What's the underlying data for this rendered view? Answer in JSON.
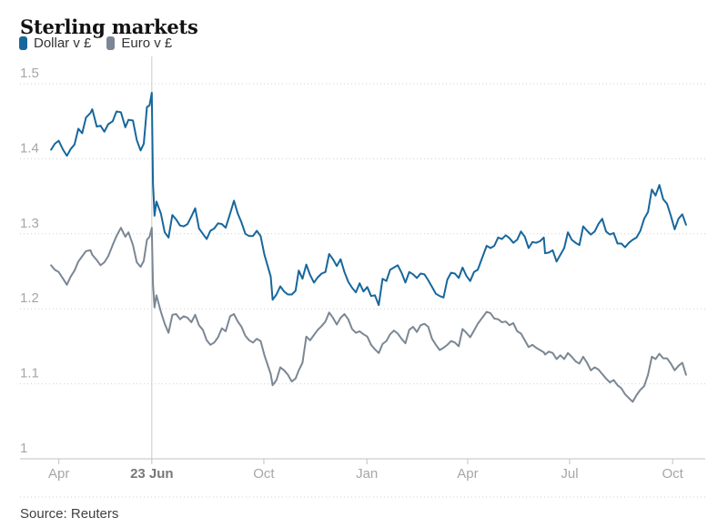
{
  "chart_data": {
    "type": "line",
    "title": "Sterling markets",
    "source": "Source: Reuters",
    "xlabel": "",
    "ylabel": "",
    "ylim": [
      1.0,
      1.5
    ],
    "grid": "dotted-horizontal",
    "legend_position": "top-left",
    "y_ticks": [
      {
        "v": 1.5,
        "label": "1.5"
      },
      {
        "v": 1.4,
        "label": "1.4"
      },
      {
        "v": 1.3,
        "label": "1.3"
      },
      {
        "v": 1.2,
        "label": "1.2"
      },
      {
        "v": 1.1,
        "label": "1.1"
      },
      {
        "v": 1.0,
        "label": "1"
      }
    ],
    "x_ticks": [
      {
        "t": 0.0123,
        "label": "Apr",
        "emphasis": false
      },
      {
        "t": 0.1587,
        "label": "23 Jun",
        "emphasis": true
      },
      {
        "t": 0.3351,
        "label": "Oct",
        "emphasis": false
      },
      {
        "t": 0.4974,
        "label": "Jan",
        "emphasis": false
      },
      {
        "t": 0.6561,
        "label": "Apr",
        "emphasis": false
      },
      {
        "t": 0.8166,
        "label": "Jul",
        "emphasis": false
      },
      {
        "t": 0.9788,
        "label": "Oct",
        "emphasis": false
      }
    ],
    "marker_line": {
      "t": 0.1587
    },
    "t": [
      0,
      0.006,
      0.012,
      0.019,
      0.025,
      0.031,
      0.037,
      0.043,
      0.049,
      0.055,
      0.062,
      0.065,
      0.072,
      0.078,
      0.084,
      0.09,
      0.097,
      0.103,
      0.11,
      0.117,
      0.122,
      0.129,
      0.135,
      0.141,
      0.146,
      0.151,
      0.155,
      0.1587,
      0.1605,
      0.163,
      0.166,
      0.173,
      0.179,
      0.185,
      0.191,
      0.197,
      0.203,
      0.209,
      0.215,
      0.221,
      0.227,
      0.233,
      0.239,
      0.245,
      0.251,
      0.257,
      0.263,
      0.269,
      0.275,
      0.282,
      0.288,
      0.294,
      0.3,
      0.306,
      0.312,
      0.318,
      0.324,
      0.33,
      0.336,
      0.346,
      0.349,
      0.355,
      0.361,
      0.367,
      0.373,
      0.379,
      0.385,
      0.39,
      0.396,
      0.402,
      0.408,
      0.414,
      0.42,
      0.426,
      0.432,
      0.438,
      0.444,
      0.45,
      0.456,
      0.462,
      0.468,
      0.474,
      0.48,
      0.486,
      0.492,
      0.498,
      0.504,
      0.51,
      0.516,
      0.522,
      0.528,
      0.534,
      0.54,
      0.546,
      0.552,
      0.558,
      0.564,
      0.57,
      0.576,
      0.582,
      0.588,
      0.594,
      0.6,
      0.606,
      0.612,
      0.618,
      0.624,
      0.63,
      0.636,
      0.642,
      0.648,
      0.654,
      0.66,
      0.666,
      0.672,
      0.686,
      0.692,
      0.698,
      0.704,
      0.71,
      0.716,
      0.722,
      0.728,
      0.734,
      0.74,
      0.746,
      0.752,
      0.758,
      0.764,
      0.77,
      0.776,
      0.778,
      0.784,
      0.79,
      0.796,
      0.802,
      0.808,
      0.814,
      0.82,
      0.826,
      0.832,
      0.838,
      0.844,
      0.85,
      0.856,
      0.862,
      0.868,
      0.874,
      0.88,
      0.886,
      0.892,
      0.898,
      0.904,
      0.91,
      0.916,
      0.922,
      0.928,
      0.934,
      0.94,
      0.946,
      0.952,
      0.958,
      0.964,
      0.97,
      0.976,
      0.982,
      0.988,
      0.994,
      1
    ],
    "series": [
      {
        "name": "Dollar v £",
        "color": "#17679c",
        "values": [
          1.412,
          1.42,
          1.424,
          1.412,
          1.404,
          1.413,
          1.419,
          1.44,
          1.434,
          1.455,
          1.461,
          1.466,
          1.443,
          1.444,
          1.436,
          1.446,
          1.45,
          1.463,
          1.462,
          1.442,
          1.452,
          1.451,
          1.425,
          1.411,
          1.42,
          1.469,
          1.471,
          1.488,
          1.368,
          1.324,
          1.343,
          1.327,
          1.302,
          1.295,
          1.325,
          1.319,
          1.311,
          1.31,
          1.313,
          1.323,
          1.334,
          1.307,
          1.3,
          1.293,
          1.304,
          1.307,
          1.314,
          1.313,
          1.308,
          1.327,
          1.344,
          1.327,
          1.315,
          1.3,
          1.297,
          1.297,
          1.304,
          1.297,
          1.272,
          1.243,
          1.212,
          1.219,
          1.23,
          1.223,
          1.219,
          1.219,
          1.224,
          1.251,
          1.24,
          1.259,
          1.245,
          1.235,
          1.242,
          1.247,
          1.249,
          1.273,
          1.266,
          1.257,
          1.266,
          1.249,
          1.236,
          1.228,
          1.222,
          1.234,
          1.223,
          1.229,
          1.217,
          1.218,
          1.205,
          1.24,
          1.237,
          1.252,
          1.255,
          1.258,
          1.248,
          1.235,
          1.249,
          1.246,
          1.241,
          1.247,
          1.246,
          1.238,
          1.229,
          1.22,
          1.217,
          1.215,
          1.239,
          1.248,
          1.247,
          1.241,
          1.255,
          1.244,
          1.237,
          1.249,
          1.252,
          1.284,
          1.281,
          1.284,
          1.295,
          1.293,
          1.298,
          1.294,
          1.288,
          1.292,
          1.303,
          1.296,
          1.281,
          1.289,
          1.288,
          1.29,
          1.295,
          1.274,
          1.275,
          1.278,
          1.263,
          1.272,
          1.281,
          1.302,
          1.292,
          1.288,
          1.285,
          1.31,
          1.304,
          1.299,
          1.303,
          1.313,
          1.32,
          1.303,
          1.299,
          1.301,
          1.287,
          1.287,
          1.282,
          1.288,
          1.292,
          1.295,
          1.304,
          1.32,
          1.329,
          1.359,
          1.351,
          1.365,
          1.346,
          1.34,
          1.324,
          1.306,
          1.32,
          1.326,
          1.312
        ]
      },
      {
        "name": "Euro v £",
        "color": "#7b8794",
        "values": [
          1.258,
          1.252,
          1.249,
          1.24,
          1.232,
          1.243,
          1.251,
          1.263,
          1.27,
          1.277,
          1.278,
          1.272,
          1.265,
          1.258,
          1.262,
          1.27,
          1.285,
          1.297,
          1.308,
          1.296,
          1.302,
          1.285,
          1.262,
          1.256,
          1.264,
          1.292,
          1.296,
          1.308,
          1.233,
          1.202,
          1.218,
          1.196,
          1.18,
          1.168,
          1.192,
          1.193,
          1.186,
          1.19,
          1.188,
          1.182,
          1.192,
          1.178,
          1.172,
          1.158,
          1.152,
          1.155,
          1.162,
          1.174,
          1.17,
          1.19,
          1.193,
          1.183,
          1.176,
          1.164,
          1.158,
          1.155,
          1.16,
          1.157,
          1.138,
          1.113,
          1.098,
          1.105,
          1.122,
          1.118,
          1.112,
          1.103,
          1.107,
          1.118,
          1.128,
          1.163,
          1.158,
          1.165,
          1.172,
          1.177,
          1.183,
          1.195,
          1.188,
          1.179,
          1.188,
          1.193,
          1.186,
          1.173,
          1.168,
          1.17,
          1.166,
          1.163,
          1.152,
          1.146,
          1.141,
          1.153,
          1.157,
          1.166,
          1.171,
          1.167,
          1.16,
          1.154,
          1.172,
          1.176,
          1.169,
          1.178,
          1.18,
          1.176,
          1.16,
          1.152,
          1.145,
          1.148,
          1.152,
          1.157,
          1.155,
          1.15,
          1.173,
          1.168,
          1.162,
          1.171,
          1.18,
          1.196,
          1.194,
          1.187,
          1.186,
          1.182,
          1.183,
          1.178,
          1.181,
          1.17,
          1.167,
          1.158,
          1.149,
          1.152,
          1.148,
          1.145,
          1.142,
          1.139,
          1.143,
          1.141,
          1.133,
          1.138,
          1.133,
          1.141,
          1.136,
          1.13,
          1.127,
          1.136,
          1.128,
          1.118,
          1.122,
          1.119,
          1.113,
          1.107,
          1.102,
          1.105,
          1.098,
          1.094,
          1.086,
          1.081,
          1.076,
          1.085,
          1.092,
          1.097,
          1.112,
          1.136,
          1.133,
          1.14,
          1.134,
          1.134,
          1.127,
          1.118,
          1.124,
          1.128,
          1.112
        ]
      }
    ],
    "colors": {
      "grid": "#d0d0d0",
      "axis": "#c2c2c2",
      "marker_line": "#c9c9c9",
      "tick_label": "#a6a6a6",
      "tick_label_emphasis": "#777777",
      "divider": "#cfcfcf"
    }
  }
}
